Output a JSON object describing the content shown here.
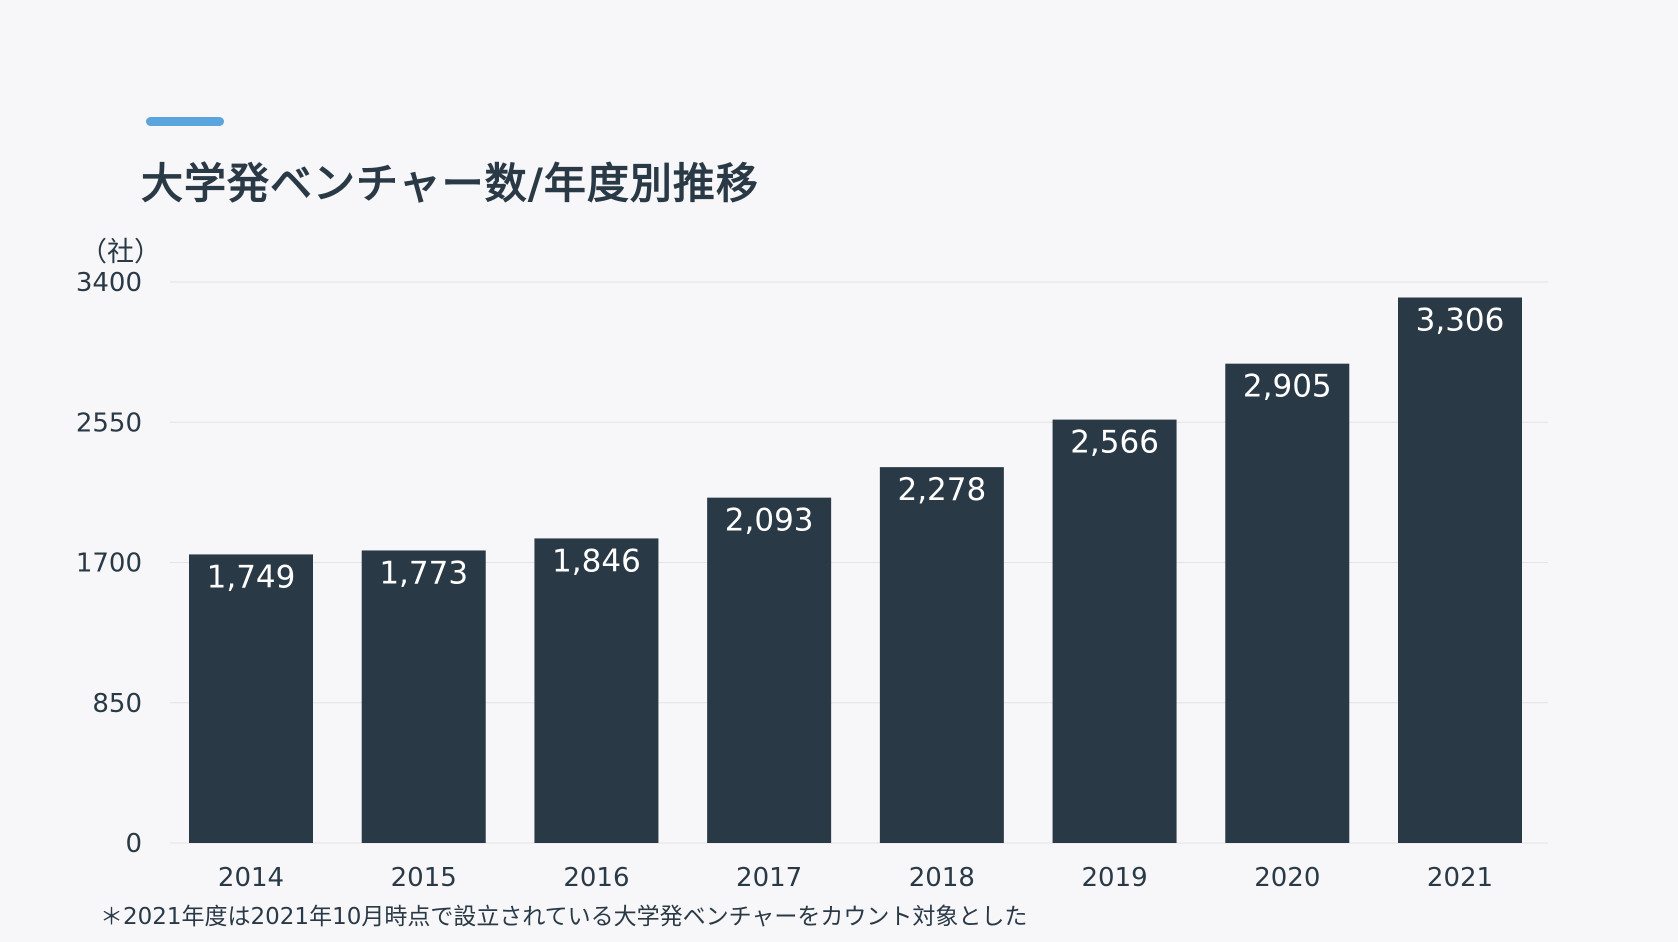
{
  "title": "大学発ベンチャー数/年度別推移",
  "unit_label": "（社）",
  "footnote": "＊2021年度は2021年10月時点で設立されている大学発ベンチャーをカウント対象とした",
  "colors": {
    "accent": "#5aa5de",
    "bar": "#2a3946",
    "grid": "#e3e3e8",
    "text": "#2a3946",
    "label": "#ffffff",
    "background": "#f7f7f9"
  },
  "chart_data": {
    "type": "bar",
    "title": "大学発ベンチャー数/年度別推移",
    "xlabel": "",
    "ylabel": "（社）",
    "categories": [
      "2014",
      "2015",
      "2016",
      "2017",
      "2018",
      "2019",
      "2020",
      "2021"
    ],
    "values": [
      1749,
      1773,
      1846,
      2093,
      2278,
      2566,
      2905,
      3306
    ],
    "value_labels": [
      "1,749",
      "1,773",
      "1,846",
      "2,093",
      "2,278",
      "2,566",
      "2,905",
      "3,306"
    ],
    "ylim": [
      0,
      3400
    ],
    "yticks": [
      0,
      850,
      1700,
      2550,
      3400
    ],
    "grid": true,
    "legend": "none"
  }
}
